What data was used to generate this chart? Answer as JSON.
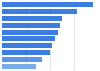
{
  "values": [
    95,
    78,
    63,
    60,
    58,
    55,
    52,
    50,
    42,
    35
  ],
  "bar_color": "#3d7de0",
  "bar_color_last": "#7aade8",
  "background_color": "#ffffff",
  "grid_color": "#d0d0d0",
  "xlim": [
    0,
    100
  ],
  "n_bars": 10,
  "bar_height": 0.72,
  "figwidth": 1.0,
  "figheight": 0.71,
  "dpi": 100
}
